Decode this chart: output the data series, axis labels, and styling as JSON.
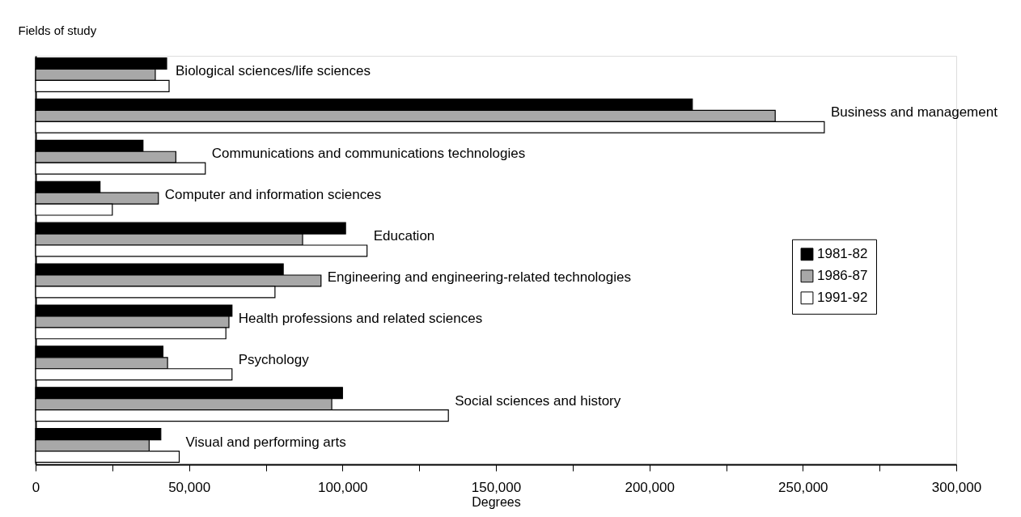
{
  "chart_data": {
    "type": "bar",
    "orientation": "horizontal",
    "xlabel": "Degrees",
    "ylabel": "Fields of study",
    "categories": [
      "Biological sciences/life sciences",
      "Business and management",
      "Communications and communications technologies",
      "Computer and information sciences",
      "Education",
      "Engineering and engineering-related technologies",
      "Health professions and related sciences",
      "Psychology",
      "Social sciences and history",
      "Visual and performing arts"
    ],
    "series": [
      {
        "name": "1981-82",
        "color": "#000000",
        "values": [
          42700,
          214000,
          35000,
          21000,
          101000,
          80700,
          64000,
          41500,
          100000,
          40800
        ]
      },
      {
        "name": "1986-87",
        "color": "#a8a8a8",
        "values": [
          39000,
          241000,
          45700,
          40000,
          87000,
          93000,
          63000,
          43000,
          96500,
          37000
        ]
      },
      {
        "name": "1991-92",
        "color": "#ffffff",
        "values": [
          43500,
          257000,
          55300,
          25000,
          108000,
          78000,
          62000,
          64000,
          134500,
          46800
        ]
      }
    ],
    "xlim": [
      0,
      300000
    ],
    "xticks": [
      0,
      {
        "value": 25000,
        "label": null
      },
      {
        "value": 50000,
        "label": "50,000"
      },
      {
        "value": 75000,
        "label": null
      },
      {
        "value": 100000,
        "label": "100,000"
      },
      {
        "value": 125000,
        "label": null
      },
      {
        "value": 150000,
        "label": "150,000"
      },
      {
        "value": 175000,
        "label": null
      },
      {
        "value": 200000,
        "label": "200,000"
      },
      {
        "value": 225000,
        "label": null
      },
      {
        "value": 250000,
        "label": "250,000"
      },
      {
        "value": 275000,
        "label": null
      },
      {
        "value": 300000,
        "label": "300,000"
      }
    ],
    "tick_labels": "x",
    "grid": false,
    "legend": "right"
  }
}
